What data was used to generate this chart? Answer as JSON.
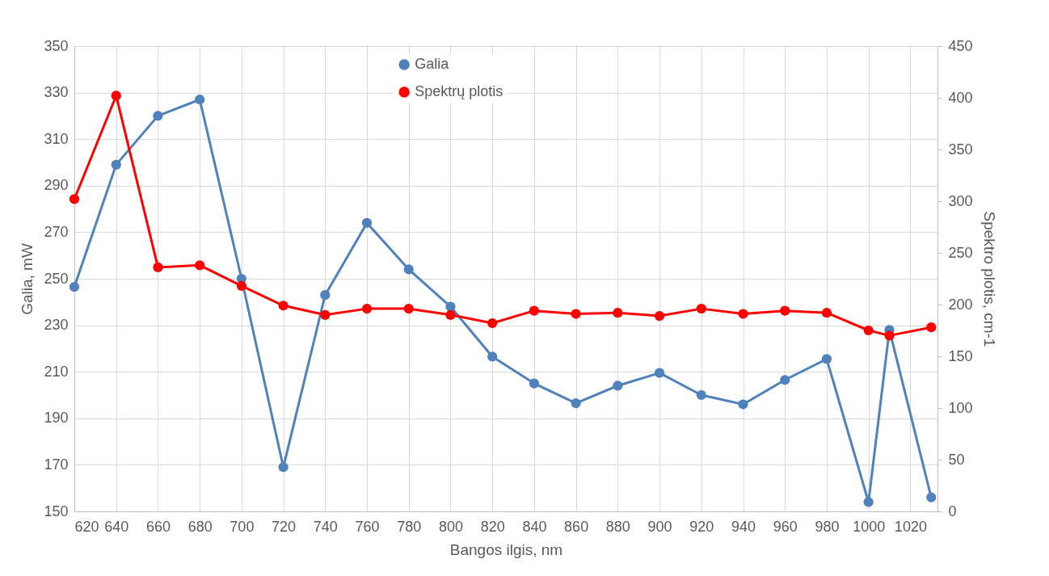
{
  "chart_data": {
    "type": "line",
    "xlabel": "Bangos ilgis, nm",
    "ylabel": "Galia, mW",
    "y2label": "Spektro plotis, cm-1",
    "x": [
      620,
      640,
      660,
      680,
      700,
      720,
      740,
      760,
      780,
      800,
      820,
      840,
      860,
      880,
      900,
      920,
      940,
      960,
      980,
      1000,
      1010,
      1030
    ],
    "series": [
      {
        "name": "Galia",
        "color": "#4f81bd",
        "axis": "y",
        "values": [
          246.5,
          299,
          320,
          327,
          250,
          169,
          243,
          274,
          254,
          238,
          216.5,
          205,
          196.5,
          204,
          209.5,
          200,
          196,
          206.5,
          215.5,
          154,
          228,
          156
        ]
      },
      {
        "name": "Spektrų plotis",
        "color": "#ff0000",
        "axis": "y2",
        "values": [
          302,
          402,
          236,
          238,
          218,
          199,
          190,
          196,
          196,
          190,
          182,
          194,
          191,
          192,
          189,
          196,
          191,
          194,
          192,
          175,
          170,
          178
        ]
      }
    ],
    "xlim": [
      620,
      1033
    ],
    "xticks": [
      620,
      640,
      660,
      680,
      700,
      720,
      740,
      760,
      780,
      800,
      820,
      840,
      860,
      880,
      900,
      920,
      940,
      960,
      980,
      1000,
      1020
    ],
    "ylim": [
      150,
      350
    ],
    "yticks": [
      150,
      170,
      190,
      210,
      230,
      250,
      270,
      290,
      310,
      330,
      350
    ],
    "y2lim": [
      0,
      450
    ],
    "y2ticks": [
      0,
      50,
      100,
      150,
      200,
      250,
      300,
      350,
      400,
      450
    ],
    "grid": true,
    "legend": "top",
    "marker": "circle",
    "line_style": "solid"
  }
}
